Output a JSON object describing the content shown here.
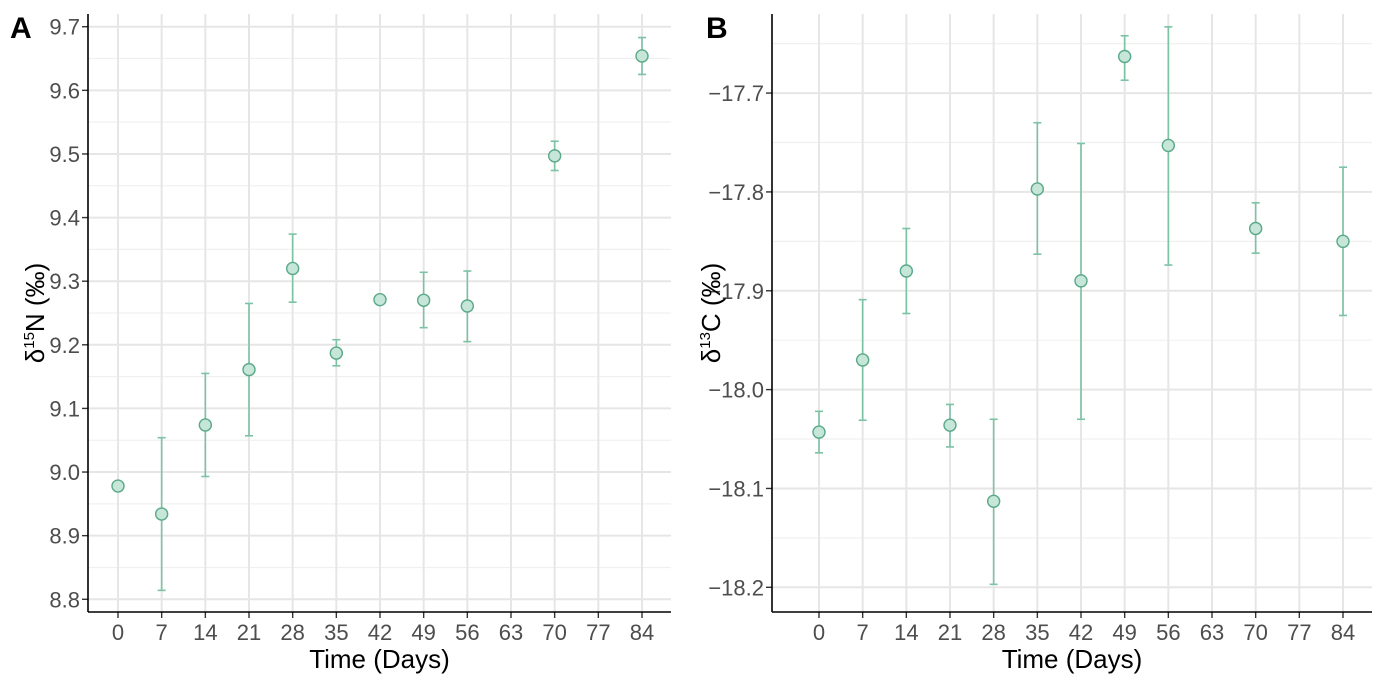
{
  "colors": {
    "point_fill": "#c6e6da",
    "point_stroke": "#5aa988",
    "errbar": "#7cc2a4"
  },
  "chart_data": [
    {
      "panel": "A",
      "type": "scatter",
      "xlabel": "Time (Days)",
      "ylabel": {
        "delta": "δ",
        "sup": "15",
        "element": "N",
        "unit": "(‰)"
      },
      "x_ticks": [
        "0",
        "7",
        "14",
        "21",
        "28",
        "35",
        "42",
        "49",
        "56",
        "63",
        "70",
        "77",
        "84"
      ],
      "y_ticks": [
        "8.8",
        "8.9",
        "9.0",
        "9.1",
        "9.2",
        "9.3",
        "9.4",
        "9.5",
        "9.6",
        "9.7"
      ],
      "ylim": [
        8.78,
        9.72
      ],
      "grid": true,
      "points": [
        {
          "x": 0,
          "y": 8.978,
          "lo": null,
          "hi": null
        },
        {
          "x": 7,
          "y": 8.934,
          "lo": 8.814,
          "hi": 9.054
        },
        {
          "x": 14,
          "y": 9.074,
          "lo": 8.993,
          "hi": 9.155
        },
        {
          "x": 21,
          "y": 9.161,
          "lo": 9.057,
          "hi": 9.265
        },
        {
          "x": 28,
          "y": 9.32,
          "lo": 9.267,
          "hi": 9.374
        },
        {
          "x": 35,
          "y": 9.187,
          "lo": 9.167,
          "hi": 9.208
        },
        {
          "x": 42,
          "y": 9.271,
          "lo": null,
          "hi": null
        },
        {
          "x": 49,
          "y": 9.27,
          "lo": 9.227,
          "hi": 9.314
        },
        {
          "x": 56,
          "y": 9.261,
          "lo": 9.205,
          "hi": 9.316
        },
        {
          "x": 70,
          "y": 9.497,
          "lo": 9.474,
          "hi": 9.52
        },
        {
          "x": 84,
          "y": 9.654,
          "lo": 9.625,
          "hi": 9.683
        }
      ]
    },
    {
      "panel": "B",
      "type": "scatter",
      "xlabel": "Time (Days)",
      "ylabel": {
        "delta": "δ",
        "sup": "13",
        "element": "C",
        "unit": "(‰)"
      },
      "x_ticks": [
        "0",
        "7",
        "14",
        "21",
        "28",
        "35",
        "42",
        "49",
        "56",
        "63",
        "70",
        "77",
        "84"
      ],
      "y_ticks": [
        "−18.2",
        "−18.1",
        "−18.0",
        "−17.9",
        "−17.8",
        "−17.7"
      ],
      "ylim": [
        -18.225,
        -17.62
      ],
      "grid": true,
      "points": [
        {
          "x": 0,
          "y": -18.043,
          "lo": -18.064,
          "hi": -18.022
        },
        {
          "x": 7,
          "y": -17.97,
          "lo": -18.031,
          "hi": -17.909
        },
        {
          "x": 14,
          "y": -17.88,
          "lo": -17.923,
          "hi": -17.837
        },
        {
          "x": 21,
          "y": -18.036,
          "lo": -18.058,
          "hi": -18.015
        },
        {
          "x": 28,
          "y": -18.113,
          "lo": -18.197,
          "hi": -18.03
        },
        {
          "x": 35,
          "y": -17.797,
          "lo": -17.863,
          "hi": -17.73
        },
        {
          "x": 42,
          "y": -17.89,
          "lo": -18.03,
          "hi": -17.751
        },
        {
          "x": 49,
          "y": -17.663,
          "lo": -17.687,
          "hi": -17.642
        },
        {
          "x": 56,
          "y": -17.753,
          "lo": -17.874,
          "hi": -17.633
        },
        {
          "x": 70,
          "y": -17.837,
          "lo": -17.862,
          "hi": -17.811
        },
        {
          "x": 84,
          "y": -17.85,
          "lo": -17.925,
          "hi": -17.775
        }
      ]
    }
  ]
}
